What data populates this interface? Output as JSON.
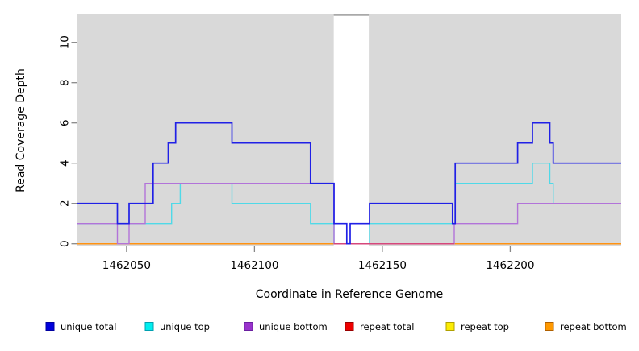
{
  "chart_data": {
    "type": "line",
    "subtype": "step-coverage",
    "title": "",
    "xlabel": "Coordinate in Reference Genome",
    "ylabel": "Read Coverage Depth",
    "plot_bg": "#d9d9d9",
    "page_bg": "#ffffff",
    "tick_color": "#888888",
    "xlim": [
      1462030.8,
      1462243.4
    ],
    "ylim": [
      -0.2,
      11.4
    ],
    "x_ticks": [
      {
        "value": 1462050,
        "label": "1462050"
      },
      {
        "value": 1462100,
        "label": "1462100"
      },
      {
        "value": 1462150,
        "label": "1462150"
      },
      {
        "value": 1462200,
        "label": "1462200"
      }
    ],
    "y_ticks": [
      {
        "value": 0,
        "label": "0"
      },
      {
        "value": 2,
        "label": "2"
      },
      {
        "value": 4,
        "label": "4"
      },
      {
        "value": 6,
        "label": "6"
      },
      {
        "value": 8,
        "label": "8"
      },
      {
        "value": 10,
        "label": "10"
      }
    ],
    "masked_region": {
      "from": 1462131.0,
      "to": 1462144.7,
      "fill": "#ffffff",
      "top_value": 11.35,
      "top_border": "#999999"
    },
    "series": [
      {
        "id": "repeat-total",
        "name": "repeat total",
        "line_color": "#cc0000",
        "swatch": "#ee0000",
        "swatch_border": "#990000",
        "width": 1.2,
        "points": [
          [
            1462030.8,
            0
          ],
          [
            1462243.4,
            0
          ]
        ]
      },
      {
        "id": "repeat-top",
        "name": "repeat top",
        "line_color": "#eeee00",
        "swatch": "#fcec03",
        "swatch_border": "#b0a000",
        "width": 1.2,
        "points": [
          [
            1462030.8,
            0
          ],
          [
            1462243.4,
            0
          ]
        ]
      },
      {
        "id": "repeat-bottom",
        "name": "repeat bottom",
        "line_color": "#ff9212",
        "swatch": "#ff9900",
        "swatch_border": "#b06000",
        "width": 1.5,
        "points": [
          [
            1462030.8,
            0
          ],
          [
            1462243.4,
            0
          ]
        ]
      },
      {
        "id": "unique-top",
        "name": "unique top",
        "line_color": "#4fd9e8",
        "swatch": "#00efef",
        "swatch_border": "#00a0b0",
        "width": 1.4,
        "points": [
          [
            1462030.8,
            1
          ],
          [
            1462067.6,
            2
          ],
          [
            1462071.0,
            3
          ],
          [
            1462091.2,
            2
          ],
          [
            1462121.9,
            1
          ],
          [
            1462131.1,
            0
          ],
          [
            1462145.0,
            1
          ],
          [
            1462178.5,
            3
          ],
          [
            1462208.7,
            4
          ],
          [
            1462215.5,
            3
          ],
          [
            1462216.8,
            2
          ],
          [
            1462243.4,
            2
          ]
        ]
      },
      {
        "id": "unique-bottom",
        "name": "unique bottom",
        "line_color": "#b273d9",
        "swatch": "#9933cc",
        "swatch_border": "#6a1fa0",
        "width": 1.4,
        "points": [
          [
            1462030.8,
            1
          ],
          [
            1462046.4,
            0
          ],
          [
            1462051.0,
            1
          ],
          [
            1462057.3,
            3
          ],
          [
            1462131.1,
            0
          ],
          [
            1462178.1,
            1
          ],
          [
            1462202.9,
            2
          ],
          [
            1462243.4,
            2
          ]
        ]
      },
      {
        "id": "unique-total",
        "name": "unique total",
        "line_color": "#2020e6",
        "swatch": "#0000dd",
        "swatch_border": "#0000a0",
        "width": 1.7,
        "points": [
          [
            1462030.8,
            2
          ],
          [
            1462046.4,
            1
          ],
          [
            1462051.0,
            2
          ],
          [
            1462060.4,
            4
          ],
          [
            1462066.3,
            5
          ],
          [
            1462069.2,
            6
          ],
          [
            1462091.2,
            5
          ],
          [
            1462121.9,
            3
          ],
          [
            1462131.1,
            1
          ],
          [
            1462136.1,
            0
          ],
          [
            1462137.4,
            1
          ],
          [
            1462145.0,
            2
          ],
          [
            1462177.4,
            1
          ],
          [
            1462178.5,
            4
          ],
          [
            1462202.9,
            5
          ],
          [
            1462208.7,
            6
          ],
          [
            1462215.5,
            5
          ],
          [
            1462216.8,
            4
          ],
          [
            1462243.4,
            4
          ]
        ]
      }
    ],
    "overlap_segment": {
      "from": 1462131.0,
      "to": 1462178.1,
      "at_value": 0,
      "color": "#d6477b",
      "meaning": "unique bottom at 0 drawn over repeat bottom"
    },
    "legend": [
      {
        "id": "unique-total",
        "label": "unique total"
      },
      {
        "id": "unique-top",
        "label": "unique top"
      },
      {
        "id": "unique-bottom",
        "label": "unique bottom"
      },
      {
        "id": "repeat-total",
        "label": "repeat total"
      },
      {
        "id": "repeat-top",
        "label": "repeat top"
      },
      {
        "id": "repeat-bottom",
        "label": "repeat bottom"
      }
    ],
    "legend_position": "bottom"
  }
}
